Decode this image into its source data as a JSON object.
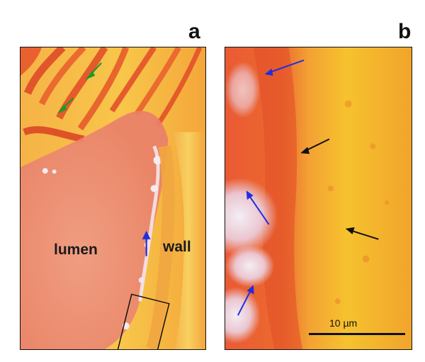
{
  "panels": [
    {
      "letter": "a",
      "labels": {
        "lumen": "lumen",
        "wall": "wall"
      }
    },
    {
      "letter": "b",
      "scale_bar": {
        "text": "10 µm"
      }
    }
  ],
  "arrow_colors": {
    "green": "#1e9a2a",
    "blue": "#1f2ee0",
    "black": "#111111"
  },
  "palette": {
    "yellow_wall": "#f7c21a",
    "orange": "#f09a2a",
    "red_orange": "#e8542a",
    "pink_lumen": "#ee8c7c"
  }
}
